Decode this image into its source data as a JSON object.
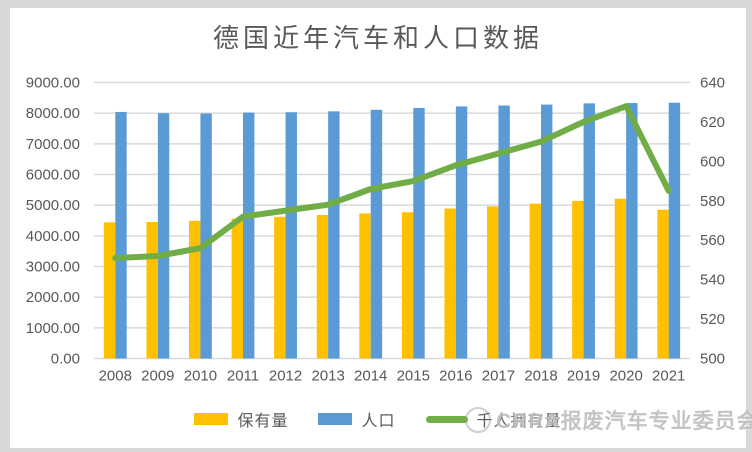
{
  "watermark": {
    "text": "CRRA报废汽车专业委员会"
  },
  "chart_data": {
    "type": "combo_bar_line",
    "title": "德国近年汽车和人口数据",
    "categories": [
      "2008",
      "2009",
      "2010",
      "2011",
      "2012",
      "2013",
      "2014",
      "2015",
      "2016",
      "2017",
      "2018",
      "2019",
      "2020",
      "2021"
    ],
    "series": [
      {
        "key": "stock",
        "name": "保有量",
        "type": "bar",
        "axis": "left",
        "color": "#FFC000",
        "values": [
          4440,
          4450,
          4490,
          4560,
          4620,
          4680,
          4730,
          4770,
          4890,
          4960,
          5050,
          5140,
          5210,
          4850
        ]
      },
      {
        "key": "population",
        "name": "人口",
        "type": "bar",
        "axis": "left",
        "color": "#5B9BD5",
        "values": [
          8040,
          8000,
          7990,
          8020,
          8030,
          8060,
          8110,
          8170,
          8220,
          8250,
          8280,
          8320,
          8330,
          8340
        ]
      },
      {
        "key": "per-thousand",
        "name": "千人拥有量",
        "type": "line",
        "axis": "right",
        "color": "#70AD47",
        "values": [
          551,
          552,
          556,
          572,
          575,
          578,
          586,
          590,
          598,
          604,
          610,
          620,
          628,
          585
        ]
      }
    ],
    "left_axis": {
      "min": 0,
      "max": 9000,
      "step": 1000,
      "ticks": [
        "9000.00",
        "8000.00",
        "7000.00",
        "6000.00",
        "5000.00",
        "4000.00",
        "3000.00",
        "2000.00",
        "1000.00",
        "0.00"
      ]
    },
    "right_axis": {
      "min": 500,
      "max": 640,
      "step": 20,
      "ticks": [
        "640",
        "620",
        "600",
        "580",
        "560",
        "540",
        "520",
        "500"
      ]
    },
    "legend_position": "bottom",
    "grid": true,
    "colors": {
      "gridline": "#D9D9D9",
      "axis_text": "#595959",
      "title_text": "#595959"
    }
  }
}
